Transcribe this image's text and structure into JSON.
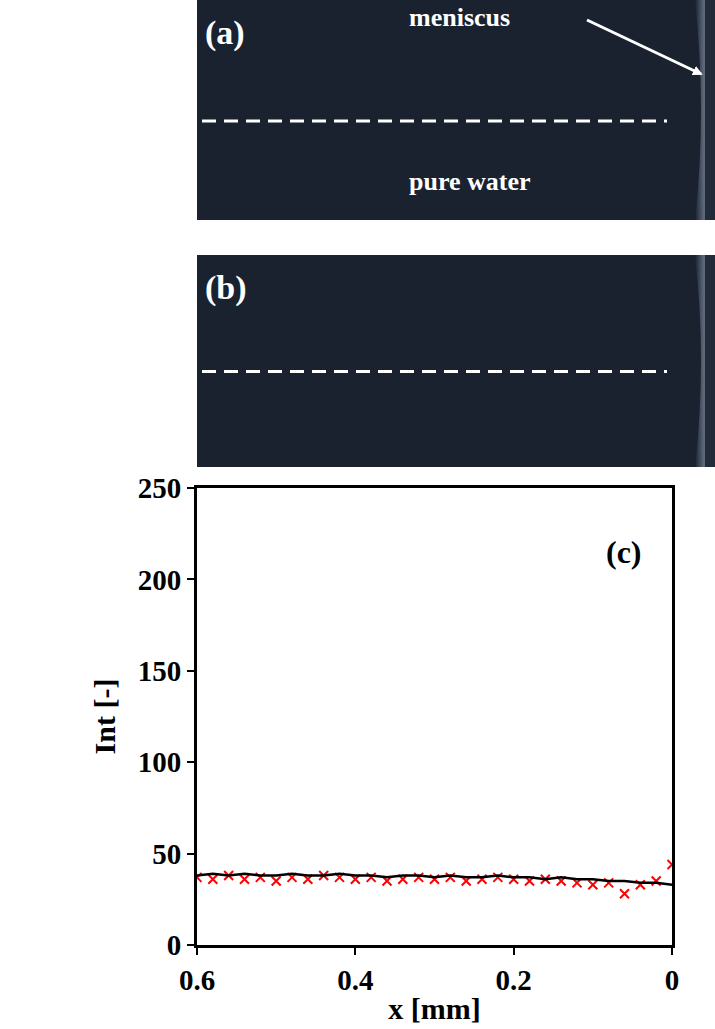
{
  "panels": [
    {
      "label": "(a)",
      "arrow_label": "meniscus",
      "region_label": "pure water"
    },
    {
      "label": "(b)"
    }
  ],
  "chart_data": {
    "type": "line",
    "ylabel": "Int [-]",
    "xlabel": "x [mm]",
    "annotation": "(c)",
    "x": [
      0.6,
      0.58,
      0.56,
      0.54,
      0.52,
      0.5,
      0.48,
      0.46,
      0.44,
      0.42,
      0.4,
      0.38,
      0.36,
      0.34,
      0.32,
      0.3,
      0.28,
      0.26,
      0.24,
      0.22,
      0.2,
      0.18,
      0.16,
      0.14,
      0.12,
      0.1,
      0.08,
      0.06,
      0.04,
      0.02,
      0
    ],
    "series": [
      {
        "color": "#ff0000",
        "type": "scatter",
        "marker": "x",
        "values": [
          37,
          36,
          38,
          36,
          37,
          35,
          37,
          36,
          38,
          37,
          36,
          37,
          35,
          36,
          37,
          36,
          37,
          35,
          36,
          37,
          36,
          35,
          36,
          35,
          34,
          33,
          34,
          28,
          33,
          35,
          44
        ]
      },
      {
        "color": "#000000",
        "type": "line",
        "line_style": "solid",
        "values": [
          38,
          39,
          38,
          39,
          38,
          38,
          39,
          38,
          38,
          39,
          38,
          38,
          37,
          38,
          38,
          37,
          38,
          37,
          37,
          38,
          37,
          37,
          36,
          37,
          36,
          36,
          35,
          35,
          34,
          34,
          33
        ]
      }
    ],
    "xlim": [
      0.6,
      0
    ],
    "xticks": [
      0.6,
      0.4,
      0.2,
      0
    ],
    "ylim": [
      0,
      250
    ],
    "yticks": [
      0,
      50,
      100,
      150,
      200,
      250
    ],
    "grid": false
  }
}
